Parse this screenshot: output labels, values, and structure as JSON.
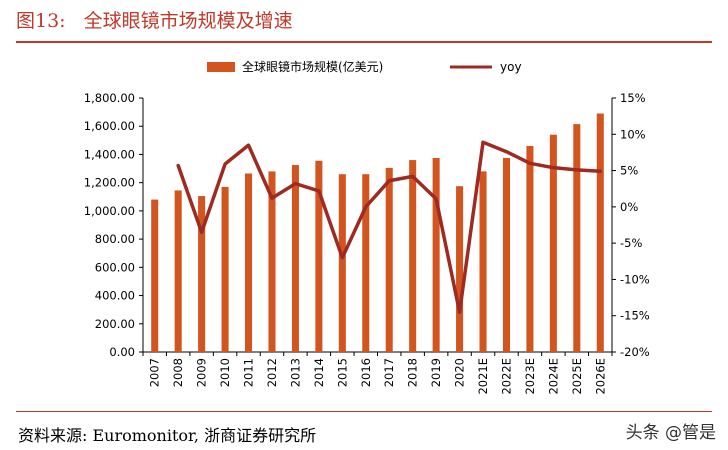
{
  "figure": {
    "number": "图13:",
    "title": "全球眼镜市场规模及增速"
  },
  "source_note": "资料来源: Euromonitor, 浙商证券研究所",
  "watermark": "头条 @管是",
  "colors": {
    "bar": "#D2541E",
    "line": "#9E2A22",
    "title": "#C0392B"
  },
  "chart_data": {
    "type": "bar",
    "categories": [
      "2007",
      "2008",
      "2009",
      "2010",
      "2011",
      "2012",
      "2013",
      "2014",
      "2015",
      "2016",
      "2017",
      "2018",
      "2019",
      "2020",
      "2021E",
      "2022E",
      "2023E",
      "2024E",
      "2025E",
      "2026E"
    ],
    "series": [
      {
        "name": "全球眼镜市场规模(亿美元)",
        "type": "bar",
        "axis": "left",
        "values": [
          1080,
          1145,
          1105,
          1170,
          1265,
          1280,
          1325,
          1355,
          1260,
          1260,
          1305,
          1360,
          1375,
          1175,
          1280,
          1375,
          1460,
          1540,
          1615,
          1690
        ]
      },
      {
        "name": "yoy",
        "type": "line",
        "axis": "right",
        "values": [
          null,
          5.7,
          -3.5,
          5.9,
          8.5,
          1.2,
          3.2,
          2.2,
          -7.0,
          0.0,
          3.6,
          4.2,
          1.1,
          -14.5,
          8.9,
          7.6,
          6.0,
          5.4,
          5.1,
          4.9
        ]
      }
    ],
    "y_left": {
      "ylim": [
        0,
        1800
      ],
      "ticks": [
        "0.00",
        "200.00",
        "400.00",
        "600.00",
        "800.00",
        "1,000.00",
        "1,200.00",
        "1,400.00",
        "1,600.00",
        "1,800.00"
      ]
    },
    "y_right": {
      "ylim": [
        -20,
        15
      ],
      "ticks": [
        "-20%",
        "-15%",
        "-10%",
        "-5%",
        "0%",
        "5%",
        "10%",
        "15%"
      ]
    },
    "legend_position": "top-center",
    "grid": false
  }
}
